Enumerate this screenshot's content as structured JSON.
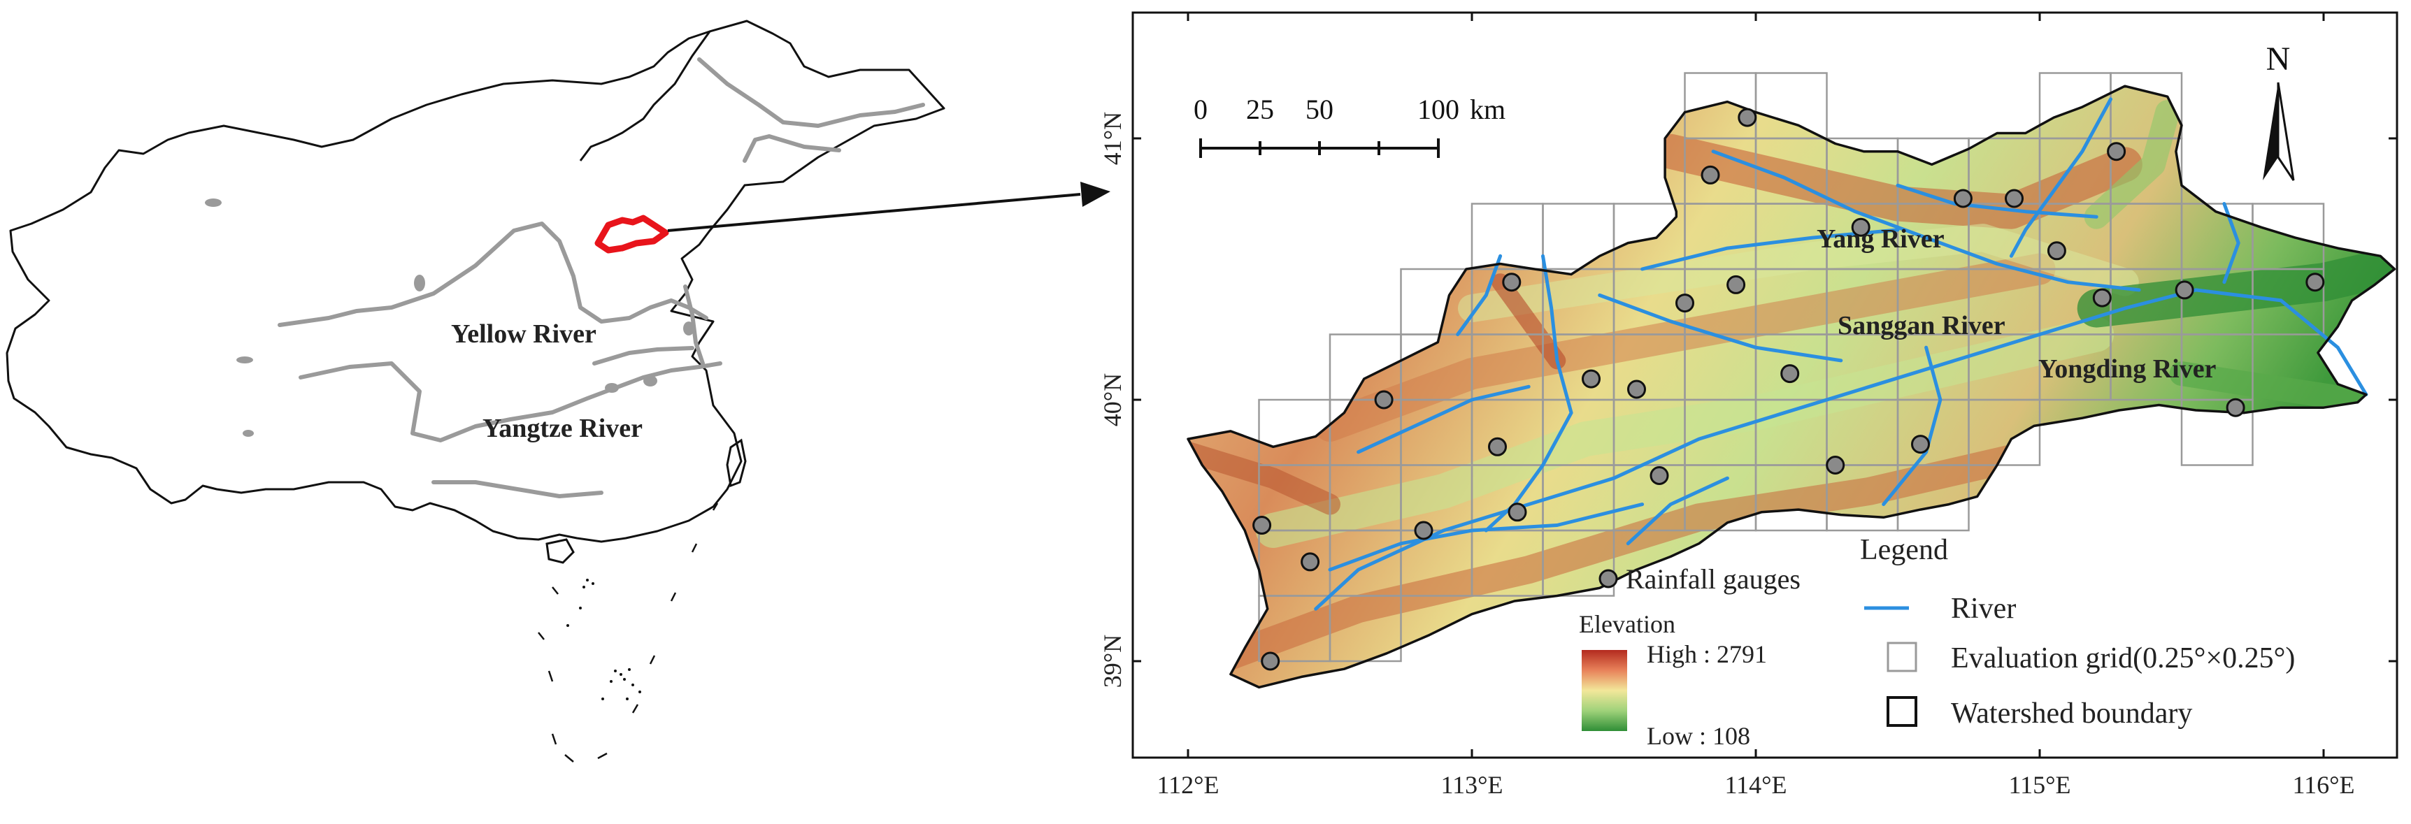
{
  "overview": {
    "labels": {
      "yellow_river": "Yellow River",
      "yangtze_river": "Yangtze River"
    }
  },
  "map": {
    "lat_ticks": [
      "41°N",
      "40°N",
      "39°N"
    ],
    "lon_ticks": [
      "112°E",
      "113°E",
      "114°E",
      "115°E",
      "116°E"
    ],
    "scale_bar": {
      "labels": [
        "0",
        "25",
        "50",
        "100"
      ],
      "unit": "km"
    },
    "north_label": "N",
    "river_labels": {
      "yang": "Yang River",
      "sanggan": "Sanggan River",
      "yongding": "Yongding River"
    },
    "gauges": [
      [
        113.97,
        41.08
      ],
      [
        113.84,
        40.86
      ],
      [
        115.27,
        40.95
      ],
      [
        114.73,
        40.77
      ],
      [
        114.91,
        40.77
      ],
      [
        114.37,
        40.66
      ],
      [
        115.06,
        40.57
      ],
      [
        113.14,
        40.45
      ],
      [
        113.93,
        40.44
      ],
      [
        113.75,
        40.37
      ],
      [
        115.22,
        40.39
      ],
      [
        115.51,
        40.42
      ],
      [
        115.97,
        40.45
      ],
      [
        113.42,
        40.08
      ],
      [
        113.58,
        40.04
      ],
      [
        114.12,
        40.1
      ],
      [
        112.69,
        40.0
      ],
      [
        113.09,
        39.82
      ],
      [
        114.28,
        39.75
      ],
      [
        114.58,
        39.83
      ],
      [
        113.66,
        39.71
      ],
      [
        113.16,
        39.57
      ],
      [
        112.83,
        39.5
      ],
      [
        112.26,
        39.52
      ],
      [
        112.43,
        39.38
      ],
      [
        112.29,
        39.0
      ],
      [
        115.69,
        39.97
      ]
    ]
  },
  "legend": {
    "title": "Legend",
    "rainfall_gauges": "Rainfall gauges",
    "river": "River",
    "grid": "Evaluation grid(0.25°×0.25°)",
    "boundary": "Watershed boundary",
    "elevation": {
      "title": "Elevation",
      "high": "High : 2791",
      "low": "Low : 108"
    },
    "colors": {
      "river": "#2b8fe0",
      "gauge": "#8a8a8a",
      "boundary_overview": "#e8141b",
      "grid": "#9a9a9a"
    }
  }
}
